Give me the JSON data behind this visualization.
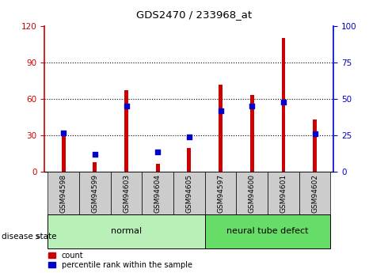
{
  "title": "GDS2470 / 233968_at",
  "samples": [
    "GSM94598",
    "GSM94599",
    "GSM94603",
    "GSM94604",
    "GSM94605",
    "GSM94597",
    "GSM94600",
    "GSM94601",
    "GSM94602"
  ],
  "count_values": [
    30,
    8,
    67,
    7,
    20,
    72,
    63,
    110,
    43
  ],
  "percentile_values": [
    27,
    12,
    45,
    14,
    24,
    42,
    45,
    48,
    26
  ],
  "groups": [
    {
      "label": "normal",
      "start": 0,
      "end": 5,
      "color": "#b8f0b8"
    },
    {
      "label": "neural tube defect",
      "start": 5,
      "end": 9,
      "color": "#66dd66"
    }
  ],
  "left_axis_color": "#cc0000",
  "right_axis_color": "#0000cc",
  "bar_color_count": "#cc0000",
  "bar_color_percentile": "#0000cc",
  "ylim_left": [
    0,
    120
  ],
  "ylim_right": [
    0,
    100
  ],
  "yticks_left": [
    0,
    30,
    60,
    90,
    120
  ],
  "yticks_right": [
    0,
    25,
    50,
    75,
    100
  ],
  "tick_bg": "#cccccc",
  "legend_entries": [
    "count",
    "percentile rank within the sample"
  ],
  "disease_state_label": "disease state",
  "bar_width": 0.12
}
